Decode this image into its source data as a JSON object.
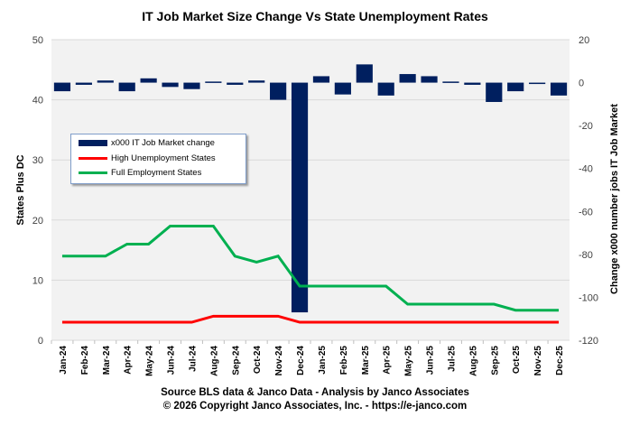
{
  "chart_data": {
    "type": "bar+line",
    "title": "IT Job Market Size Change Vs State Unemployment Rates",
    "ylabel_left": "States Plus DC",
    "ylabel_right": "Change x000 number jobs IT Job Market",
    "ylim_left": [
      0,
      50
    ],
    "yticks_left": [
      0,
      10,
      20,
      30,
      40,
      50
    ],
    "ylim_right": [
      -120,
      20
    ],
    "yticks_right": [
      20,
      0,
      -20,
      -40,
      -60,
      -80,
      -100,
      -120
    ],
    "grid": true,
    "legend_position": "left-middle",
    "categories": [
      "Jan-24",
      "Feb-24",
      "Mar-24",
      "Apr-24",
      "May-24",
      "Jun-24",
      "Jul-24",
      "Aug-24",
      "Sep-24",
      "Oct-24",
      "Nov-24",
      "Dec-24",
      "Jan-25",
      "Feb-25",
      "Mar-25",
      "Apr-25",
      "May-25",
      "Jun-25",
      "Jul-25",
      "Aug-25",
      "Sep-25",
      "Oct-25",
      "Nov-25",
      "Dec-25"
    ],
    "series": [
      {
        "name": "x000 IT Job Market change",
        "type": "bar",
        "axis": "right",
        "color": "#001f5f",
        "values": [
          -4,
          -1,
          1,
          -4,
          2,
          -2,
          -3,
          0.5,
          -1,
          1,
          -8,
          -107,
          3,
          -5.5,
          8.5,
          -6,
          4,
          3,
          0.5,
          -1,
          -9,
          -4,
          -0.5,
          -6
        ]
      },
      {
        "name": "High Unemployment States",
        "type": "line",
        "axis": "left",
        "color": "#ff0000",
        "values": [
          3,
          3,
          3,
          3,
          3,
          3,
          3,
          4,
          4,
          4,
          4,
          3,
          3,
          3,
          3,
          3,
          3,
          3,
          3,
          3,
          3,
          3,
          3,
          3
        ]
      },
      {
        "name": "Full Employment States",
        "type": "line",
        "axis": "left",
        "color": "#00b050",
        "values": [
          14,
          14,
          14,
          16,
          16,
          19,
          19,
          19,
          14,
          13,
          14,
          9,
          9,
          9,
          9,
          9,
          6,
          6,
          6,
          6,
          6,
          5,
          5,
          5
        ]
      }
    ]
  },
  "source_line": "Source BLS data & Janco Data  - Analysis by Janco  Associates",
  "copyright_line": "© 2026 Copyright Janco Associates, Inc. - https://e-janco.com"
}
